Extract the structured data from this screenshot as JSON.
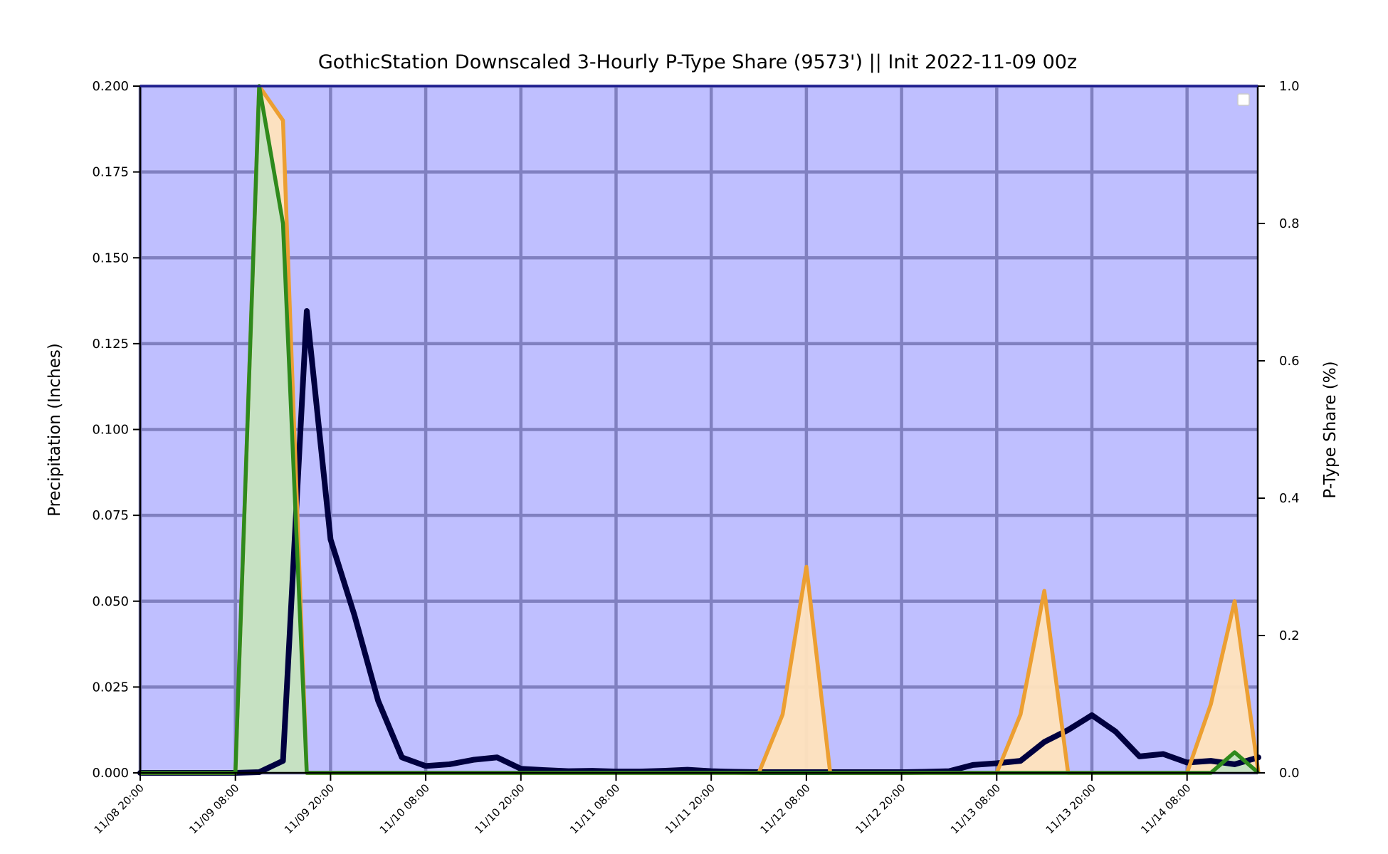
{
  "chart_data": {
    "type": "area",
    "title": "GothicStation Downscaled 3-Hourly P-Type Share (9573') || Init 2022-11-09 00z",
    "ylabel": "Precipitation (Inches)",
    "y2label": "P-Type Share (%)",
    "ylim": [
      0,
      0.2
    ],
    "y2lim": [
      0,
      1.0
    ],
    "yticks": [
      "0.000",
      "0.025",
      "0.050",
      "0.075",
      "0.100",
      "0.125",
      "0.150",
      "0.175",
      "0.200"
    ],
    "y2ticks": [
      "0.0",
      "0.2",
      "0.4",
      "0.6",
      "0.8",
      "1.0"
    ],
    "xticks": [
      "11/08 20:00",
      "11/09 08:00",
      "11/09 20:00",
      "11/10 08:00",
      "11/10 20:00",
      "11/11 08:00",
      "11/11 20:00",
      "11/12 08:00",
      "11/12 20:00",
      "11/13 08:00",
      "11/13 20:00",
      "11/14 08:00"
    ],
    "x": [
      "11/08 20:00",
      "11/08 23:00",
      "11/09 02:00",
      "11/09 05:00",
      "11/09 08:00",
      "11/09 11:00",
      "11/09 14:00",
      "11/09 17:00",
      "11/09 20:00",
      "11/09 23:00",
      "11/10 02:00",
      "11/10 05:00",
      "11/10 08:00",
      "11/10 11:00",
      "11/10 14:00",
      "11/10 17:00",
      "11/10 20:00",
      "11/10 23:00",
      "11/11 02:00",
      "11/11 05:00",
      "11/11 08:00",
      "11/11 11:00",
      "11/11 14:00",
      "11/11 17:00",
      "11/11 20:00",
      "11/11 23:00",
      "11/12 02:00",
      "11/12 05:00",
      "11/12 08:00",
      "11/12 11:00",
      "11/12 14:00",
      "11/12 17:00",
      "11/12 20:00",
      "11/12 23:00",
      "11/13 02:00",
      "11/13 05:00",
      "11/13 08:00",
      "11/13 11:00",
      "11/13 14:00",
      "11/13 17:00",
      "11/13 20:00",
      "11/13 23:00",
      "11/14 02:00",
      "11/14 05:00",
      "11/14 08:00",
      "11/14 11:00",
      "11/14 14:00",
      "11/14 17:00"
    ],
    "series": [
      {
        "kind": "precip",
        "axis": "left",
        "color": "#00003f",
        "overlap_color": "#1c2a08",
        "values": [
          0,
          0,
          0,
          0,
          0,
          0.0002,
          0.0035,
          0.1345,
          0.068,
          0.046,
          0.021,
          0.0045,
          0.002,
          0.0025,
          0.0038,
          0.0045,
          0.0012,
          0.0008,
          0.0005,
          0.0006,
          0.0004,
          0.0004,
          0.0006,
          0.0009,
          0.0005,
          0.0003,
          0.0002,
          0.0002,
          0.0002,
          0.0002,
          0.0002,
          0.0002,
          0.0002,
          0.0003,
          0.0005,
          0.0023,
          0.0028,
          0.0035,
          0.009,
          0.0125,
          0.0168,
          0.012,
          0.0048,
          0.0055,
          0.003,
          0.0035,
          0.0025,
          0.0045
        ]
      },
      {
        "kind": "share",
        "axis": "right",
        "color": "#ec9f32",
        "fill": "#ffe3bd",
        "values": [
          0,
          0,
          0,
          0,
          0,
          1.0,
          0.95,
          0,
          0,
          0,
          0,
          0,
          0,
          0,
          0,
          0,
          0,
          0,
          0,
          0,
          0,
          0,
          0,
          0,
          0,
          0,
          0,
          0.085,
          0.3,
          0,
          0,
          0,
          0,
          0,
          0,
          0,
          0,
          0.085,
          0.265,
          0,
          0,
          0,
          0,
          0,
          0,
          0.1,
          0.25,
          0
        ]
      },
      {
        "kind": "share",
        "axis": "right",
        "color": "#2f8a1c",
        "fill": "#c3e0c2",
        "values": [
          0,
          0,
          0,
          0,
          0,
          1.0,
          0.8,
          0,
          0,
          0,
          0,
          0,
          0,
          0,
          0,
          0,
          0,
          0,
          0,
          0,
          0,
          0,
          0,
          0,
          0,
          0,
          0,
          0,
          0,
          0,
          0,
          0,
          0,
          0,
          0,
          0,
          0,
          0,
          0,
          0,
          0,
          0,
          0,
          0,
          0,
          0,
          0.03,
          0
        ]
      }
    ],
    "grid": true,
    "legend": "top-right",
    "background": "#bfbfff",
    "grid_color": "#8080c0"
  }
}
